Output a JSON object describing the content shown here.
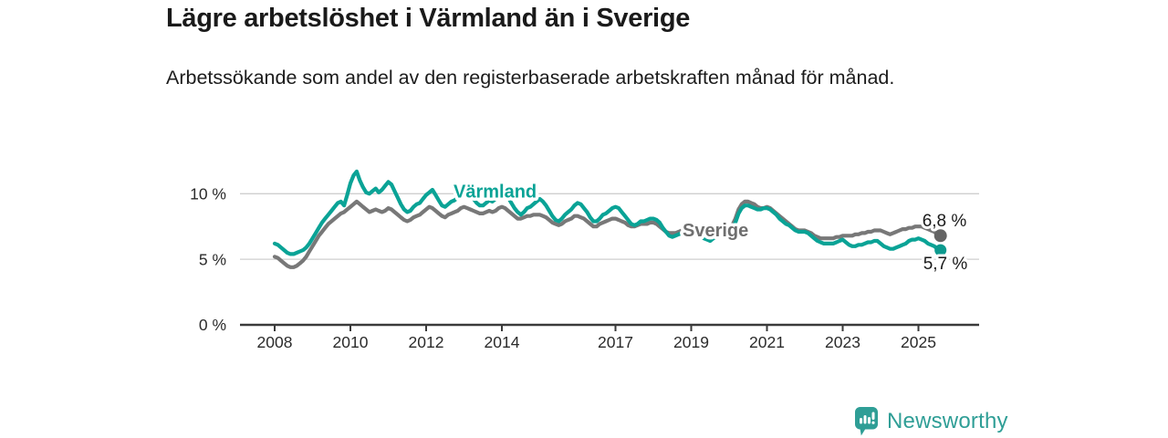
{
  "header": {
    "title": "Lägre arbetslöshet i Värmland än i Sverige",
    "subtitle": "Arbetssökande som andel av den registerbaserade arbetskraften månad för månad."
  },
  "branding": {
    "logo_text": "Newsworthy",
    "logo_icon": "bar-chart-speech-bubble-icon",
    "logo_color": "#2f9e96"
  },
  "chart_data": {
    "type": "line",
    "title": "Lägre arbetslöshet i Värmland än i Sverige",
    "subtitle": "Arbetssökande som andel av den registerbaserade arbetskraften månad för månad.",
    "unit": "%",
    "x_start_year": 2008,
    "x_end_label_period": "aug 2025",
    "points_per_year": 12,
    "x_tick_years": [
      "2008",
      "2010",
      "2012",
      "2014",
      "2017",
      "2019",
      "2021",
      "2023",
      "2025"
    ],
    "y_ticks": [
      {
        "value": 0,
        "label": "0 %"
      },
      {
        "value": 5,
        "label": "5 %"
      },
      {
        "value": 10,
        "label": "10 %"
      }
    ],
    "ylim": [
      0,
      12.5
    ],
    "grid": "horizontal",
    "legend_position": "inline-labels",
    "axis_color": "#3a3a3a",
    "grid_color": "#cfcfcf",
    "series": [
      {
        "name": "Sverige",
        "color": "#787878",
        "dot_color": "#646464",
        "end_value": 6.8,
        "end_label": "6,8 %",
        "values": [
          5.2,
          5.1,
          4.9,
          4.7,
          4.5,
          4.4,
          4.4,
          4.5,
          4.7,
          4.9,
          5.2,
          5.6,
          6.0,
          6.4,
          6.8,
          7.1,
          7.4,
          7.7,
          7.9,
          8.1,
          8.3,
          8.5,
          8.6,
          8.8,
          9.0,
          9.2,
          9.4,
          9.2,
          9.0,
          8.8,
          8.6,
          8.7,
          8.8,
          8.7,
          8.6,
          8.7,
          8.9,
          8.8,
          8.6,
          8.4,
          8.2,
          8.0,
          7.9,
          8.0,
          8.2,
          8.3,
          8.4,
          8.6,
          8.8,
          9.0,
          8.9,
          8.7,
          8.5,
          8.3,
          8.2,
          8.4,
          8.5,
          8.6,
          8.7,
          8.9,
          9.0,
          8.9,
          8.8,
          8.7,
          8.6,
          8.5,
          8.5,
          8.6,
          8.7,
          8.6,
          8.7,
          8.9,
          9.0,
          8.9,
          8.7,
          8.5,
          8.3,
          8.1,
          8.1,
          8.2,
          8.3,
          8.3,
          8.4,
          8.4,
          8.4,
          8.3,
          8.2,
          8.0,
          7.8,
          7.7,
          7.6,
          7.7,
          7.9,
          8.0,
          8.1,
          8.3,
          8.3,
          8.2,
          8.1,
          7.9,
          7.7,
          7.5,
          7.5,
          7.7,
          7.8,
          7.9,
          8.0,
          8.1,
          8.1,
          8.0,
          7.9,
          7.8,
          7.6,
          7.5,
          7.5,
          7.6,
          7.7,
          7.7,
          7.7,
          7.8,
          7.8,
          7.7,
          7.5,
          7.3,
          7.1,
          7.0,
          7.0,
          7.0,
          7.1,
          7.2,
          7.2,
          7.3,
          7.4,
          7.3,
          7.2,
          7.1,
          7.0,
          7.0,
          7.0,
          7.1,
          7.1,
          7.2,
          7.3,
          7.4,
          7.5,
          7.6,
          8.1,
          8.8,
          9.2,
          9.4,
          9.4,
          9.3,
          9.2,
          9.0,
          8.9,
          8.9,
          9.0,
          8.9,
          8.7,
          8.5,
          8.3,
          8.1,
          7.9,
          7.7,
          7.5,
          7.3,
          7.2,
          7.2,
          7.2,
          7.1,
          7.0,
          6.8,
          6.7,
          6.6,
          6.6,
          6.6,
          6.6,
          6.6,
          6.7,
          6.7,
          6.8,
          6.8,
          6.8,
          6.8,
          6.9,
          6.9,
          7.0,
          7.0,
          7.1,
          7.1,
          7.2,
          7.2,
          7.2,
          7.1,
          7.0,
          6.9,
          7.0,
          7.1,
          7.2,
          7.3,
          7.3,
          7.4,
          7.4,
          7.5,
          7.5,
          7.5,
          7.4,
          7.3,
          7.2,
          7.1,
          6.9,
          6.8
        ]
      },
      {
        "name": "Värmland",
        "color": "#0aa396",
        "dot_color": "#0c9a8e",
        "end_value": 5.7,
        "end_label": "5,7 %",
        "values": [
          6.2,
          6.1,
          5.9,
          5.7,
          5.5,
          5.4,
          5.4,
          5.5,
          5.6,
          5.7,
          5.9,
          6.2,
          6.6,
          7.0,
          7.4,
          7.8,
          8.1,
          8.4,
          8.7,
          9.0,
          9.3,
          9.4,
          9.1,
          9.9,
          10.8,
          11.4,
          11.7,
          11.0,
          10.5,
          10.1,
          10.0,
          10.2,
          10.4,
          10.1,
          10.3,
          10.6,
          10.9,
          10.7,
          10.2,
          9.7,
          9.2,
          8.8,
          8.6,
          8.7,
          9.0,
          9.2,
          9.3,
          9.6,
          9.9,
          10.1,
          10.3,
          9.9,
          9.5,
          9.1,
          9.0,
          9.2,
          9.4,
          9.5,
          9.7,
          9.9,
          10.2,
          10.1,
          9.9,
          9.6,
          9.3,
          9.1,
          9.1,
          9.3,
          9.5,
          9.4,
          9.6,
          9.8,
          9.9,
          10.0,
          9.7,
          9.3,
          8.9,
          8.6,
          8.4,
          8.6,
          8.9,
          9.0,
          9.2,
          9.4,
          9.6,
          9.4,
          9.1,
          8.7,
          8.3,
          8.0,
          7.9,
          8.1,
          8.4,
          8.6,
          8.8,
          9.1,
          9.3,
          9.2,
          8.9,
          8.6,
          8.2,
          7.9,
          7.9,
          8.1,
          8.4,
          8.5,
          8.7,
          8.9,
          9.0,
          8.9,
          8.6,
          8.3,
          8.0,
          7.7,
          7.6,
          7.7,
          7.9,
          7.9,
          8.0,
          8.1,
          8.1,
          8.0,
          7.8,
          7.4,
          7.1,
          6.8,
          6.7,
          6.8,
          6.9,
          7.0,
          7.1,
          7.2,
          7.3,
          7.3,
          7.1,
          6.8,
          6.6,
          6.5,
          6.4,
          6.6,
          6.7,
          6.8,
          6.9,
          7.1,
          7.2,
          7.3,
          7.8,
          8.5,
          8.9,
          9.1,
          9.1,
          9.0,
          8.9,
          8.8,
          8.8,
          8.9,
          8.9,
          8.8,
          8.6,
          8.4,
          8.1,
          7.9,
          7.7,
          7.6,
          7.4,
          7.2,
          7.1,
          7.1,
          7.1,
          7.0,
          6.8,
          6.6,
          6.4,
          6.3,
          6.2,
          6.2,
          6.2,
          6.2,
          6.3,
          6.4,
          6.5,
          6.3,
          6.1,
          6.0,
          6.0,
          6.1,
          6.1,
          6.2,
          6.3,
          6.3,
          6.4,
          6.4,
          6.2,
          6.0,
          5.9,
          5.8,
          5.8,
          5.9,
          6.0,
          6.1,
          6.2,
          6.4,
          6.5,
          6.5,
          6.6,
          6.5,
          6.4,
          6.2,
          6.1,
          6.0,
          5.8,
          5.7
        ]
      }
    ]
  }
}
